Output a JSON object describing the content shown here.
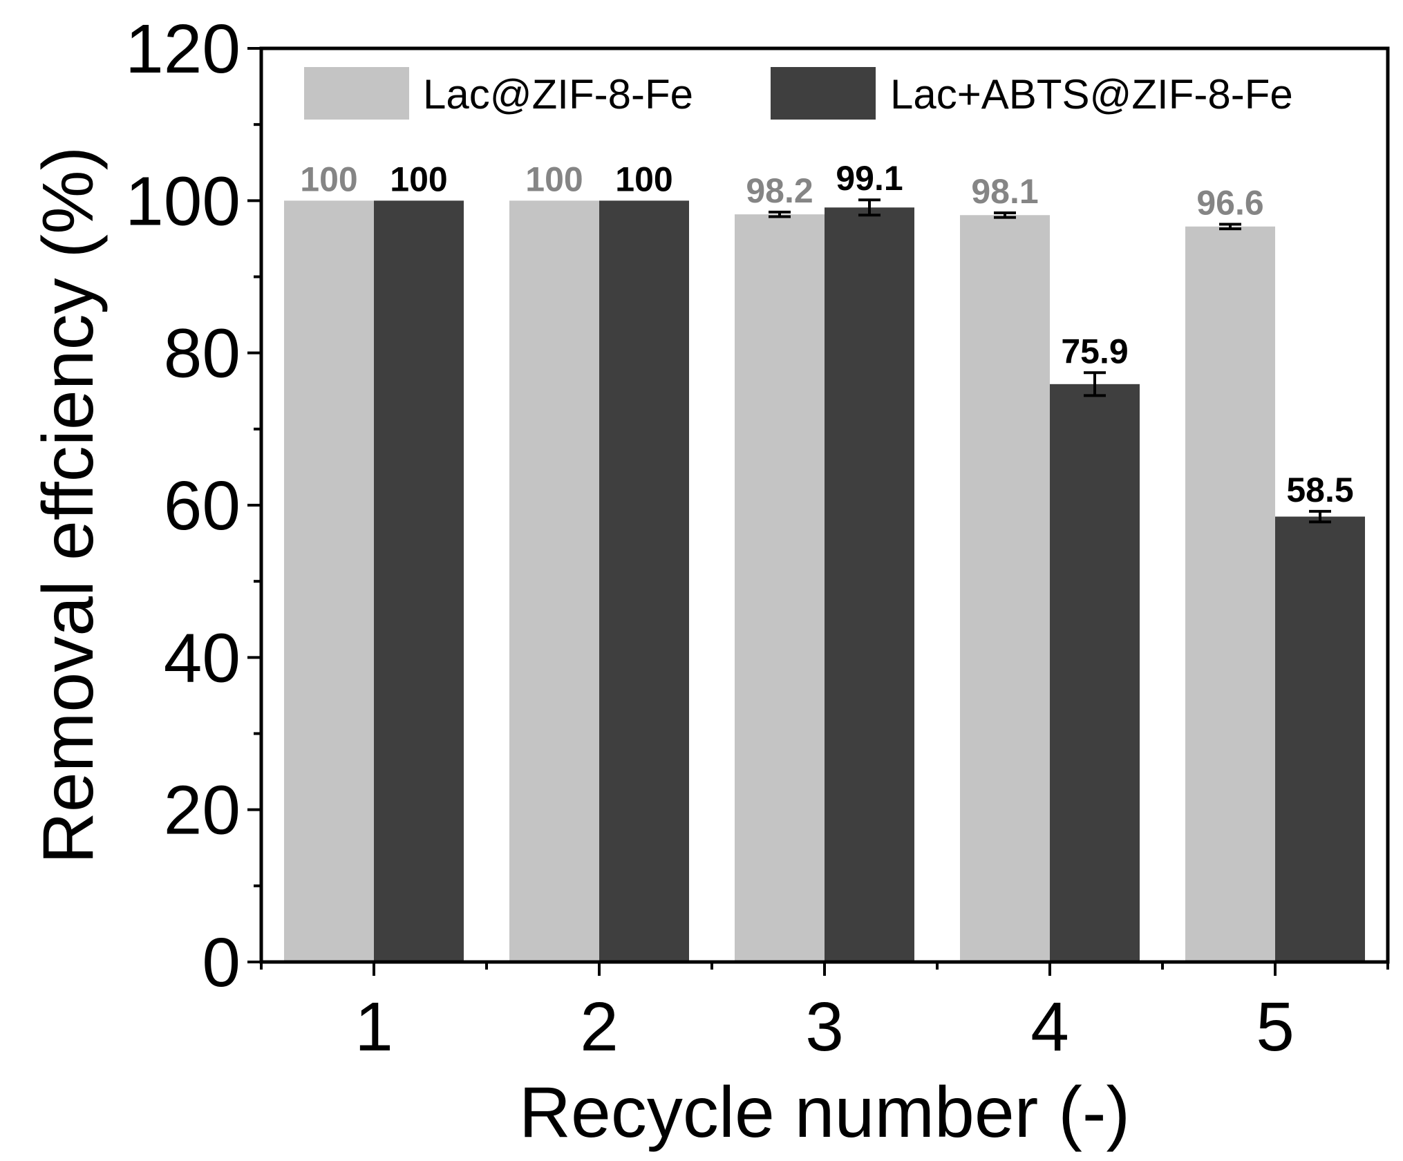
{
  "chart_data": {
    "type": "bar",
    "categories": [
      "1",
      "2",
      "3",
      "4",
      "5"
    ],
    "series": [
      {
        "name": "Lac@ZIF-8-Fe",
        "values": [
          100,
          100,
          98.2,
          98.1,
          96.6
        ],
        "labels": [
          "100",
          "100",
          "98.2",
          "98.1",
          "96.6"
        ],
        "errors": [
          0,
          0,
          0.3,
          0.3,
          0.3
        ],
        "color": "#c4c4c4",
        "label_color": "#858585"
      },
      {
        "name": "Lac+ABTS@ZIF-8-Fe",
        "values": [
          100,
          100,
          99.1,
          75.9,
          58.5
        ],
        "labels": [
          "100",
          "100",
          "99.1",
          "75.9",
          "58.5"
        ],
        "errors": [
          0,
          0,
          1.0,
          1.5,
          0.7
        ],
        "color": "#3f3f3f",
        "label_color": "#000000"
      }
    ],
    "xlabel": "Recycle number (-)",
    "ylabel": "Removal effciency (%)",
    "ylim": [
      0,
      120
    ],
    "yticks": [
      0,
      20,
      40,
      60,
      80,
      100,
      120
    ],
    "grid": false,
    "legend_position": "top"
  }
}
